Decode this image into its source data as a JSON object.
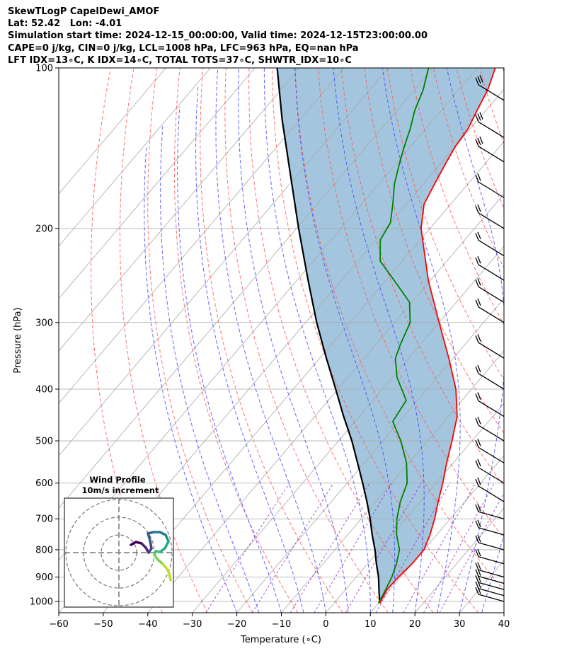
{
  "header": {
    "line1": "SkewTLogP CapelDewi_AMOF",
    "line2": "Lat: 52.42   Lon: -4.01",
    "line3": "Simulation start time: 2024-12-15_00:00:00, Valid time: 2024-12-15T23:00:00.00",
    "line4": "CAPE=0 j/kg, CIN=0 j/kg, LCL=1008 hPa, LFC=963 hPa, EQ=nan hPa",
    "line5": "LFT IDX=13∘C, K IDX=14∘C, TOTAL TOTS=37∘C, SHWTR_IDX=10∘C"
  },
  "chart_data": {
    "type": "line",
    "subtype": "skew-t log-p",
    "xlabel": "Temperature (∘C)",
    "ylabel": "Pressure (hPa)",
    "xlim": [
      -60,
      40
    ],
    "ylim": [
      1050,
      100
    ],
    "y_scale": "log",
    "grid": true,
    "x_ticks": [
      -60,
      -50,
      -40,
      -30,
      -20,
      -10,
      0,
      10,
      20,
      30,
      40
    ],
    "x_tick_labels": [
      "−60",
      "−50",
      "−40",
      "−30",
      "−20",
      "−10",
      "0",
      "10",
      "20",
      "30",
      "40"
    ],
    "y_ticks": [
      1000,
      900,
      800,
      700,
      600,
      500,
      400,
      300,
      200,
      100
    ],
    "y_tick_labels": [
      "1000",
      "900",
      "800",
      "700",
      "600",
      "500",
      "400",
      "300",
      "200",
      "100"
    ],
    "colors": {
      "temperature": "#ff0000",
      "dewpoint": "#008000",
      "parcel": "#000000",
      "shade": "#a3c6de",
      "dry_adiabat": "#ff5a5a",
      "moist_adiabat": "#4a4aff",
      "mixing_ratio": "#9a40c8",
      "isotherm": "#a8a8a8"
    },
    "series": [
      {
        "role": "temperature",
        "points": [
          [
            1008,
            10.3
          ],
          [
            950,
            9.3
          ],
          [
            900,
            9.5
          ],
          [
            850,
            10.0
          ],
          [
            800,
            10.0
          ],
          [
            750,
            8.5
          ],
          [
            700,
            6.5
          ],
          [
            650,
            4.0
          ],
          [
            600,
            1.5
          ],
          [
            550,
            -1.5
          ],
          [
            500,
            -4.5
          ],
          [
            450,
            -8.0
          ],
          [
            400,
            -13.5
          ],
          [
            350,
            -21.0
          ],
          [
            300,
            -30.0
          ],
          [
            250,
            -40.5
          ],
          [
            200,
            -52.0
          ],
          [
            180,
            -56.0
          ],
          [
            160,
            -58.0
          ],
          [
            150,
            -59.0
          ],
          [
            140,
            -60.0
          ],
          [
            130,
            -60.5
          ],
          [
            120,
            -62.0
          ],
          [
            110,
            -63.5
          ],
          [
            100,
            -66.0
          ]
        ]
      },
      {
        "role": "dewpoint",
        "points": [
          [
            1008,
            10.0
          ],
          [
            950,
            9.0
          ],
          [
            900,
            8.0
          ],
          [
            850,
            6.5
          ],
          [
            800,
            4.5
          ],
          [
            750,
            1.0
          ],
          [
            700,
            -2.0
          ],
          [
            650,
            -4.5
          ],
          [
            600,
            -6.5
          ],
          [
            550,
            -10.5
          ],
          [
            500,
            -16.0
          ],
          [
            460,
            -21.5
          ],
          [
            420,
            -22.5
          ],
          [
            380,
            -29.0
          ],
          [
            350,
            -33.0
          ],
          [
            330,
            -34.5
          ],
          [
            300,
            -36.5
          ],
          [
            275,
            -40.5
          ],
          [
            260,
            -45.0
          ],
          [
            230,
            -55.0
          ],
          [
            210,
            -59.0
          ],
          [
            195,
            -60.0
          ],
          [
            180,
            -63.0
          ],
          [
            165,
            -66.5
          ],
          [
            150,
            -69.5
          ],
          [
            140,
            -71.5
          ],
          [
            130,
            -73.5
          ],
          [
            120,
            -76.0
          ],
          [
            110,
            -78.0
          ],
          [
            100,
            -81.0
          ]
        ]
      },
      {
        "role": "parcel",
        "points": [
          [
            1008,
            10.3
          ],
          [
            950,
            7.5
          ],
          [
            900,
            5.0
          ],
          [
            850,
            2.0
          ],
          [
            800,
            -1.0
          ],
          [
            750,
            -4.5
          ],
          [
            700,
            -8.0
          ],
          [
            650,
            -12.0
          ],
          [
            600,
            -16.5
          ],
          [
            550,
            -21.5
          ],
          [
            500,
            -27.0
          ],
          [
            450,
            -33.5
          ],
          [
            400,
            -40.5
          ],
          [
            350,
            -48.5
          ],
          [
            300,
            -57.5
          ],
          [
            250,
            -67.5
          ],
          [
            200,
            -79.5
          ],
          [
            150,
            -94.5
          ],
          [
            125,
            -104.0
          ],
          [
            100,
            -115.0
          ]
        ]
      }
    ],
    "wind_barbs": {
      "pressures": [
        1000,
        975,
        950,
        925,
        900,
        850,
        800,
        750,
        700,
        650,
        600,
        550,
        500,
        450,
        400,
        350,
        300,
        275,
        250,
        225,
        200,
        175,
        150,
        135,
        115
      ]
    },
    "inset": {
      "title": "Wind Profile",
      "subtitle": "10m/s increment",
      "rings_ms": [
        10,
        20,
        30
      ]
    }
  }
}
